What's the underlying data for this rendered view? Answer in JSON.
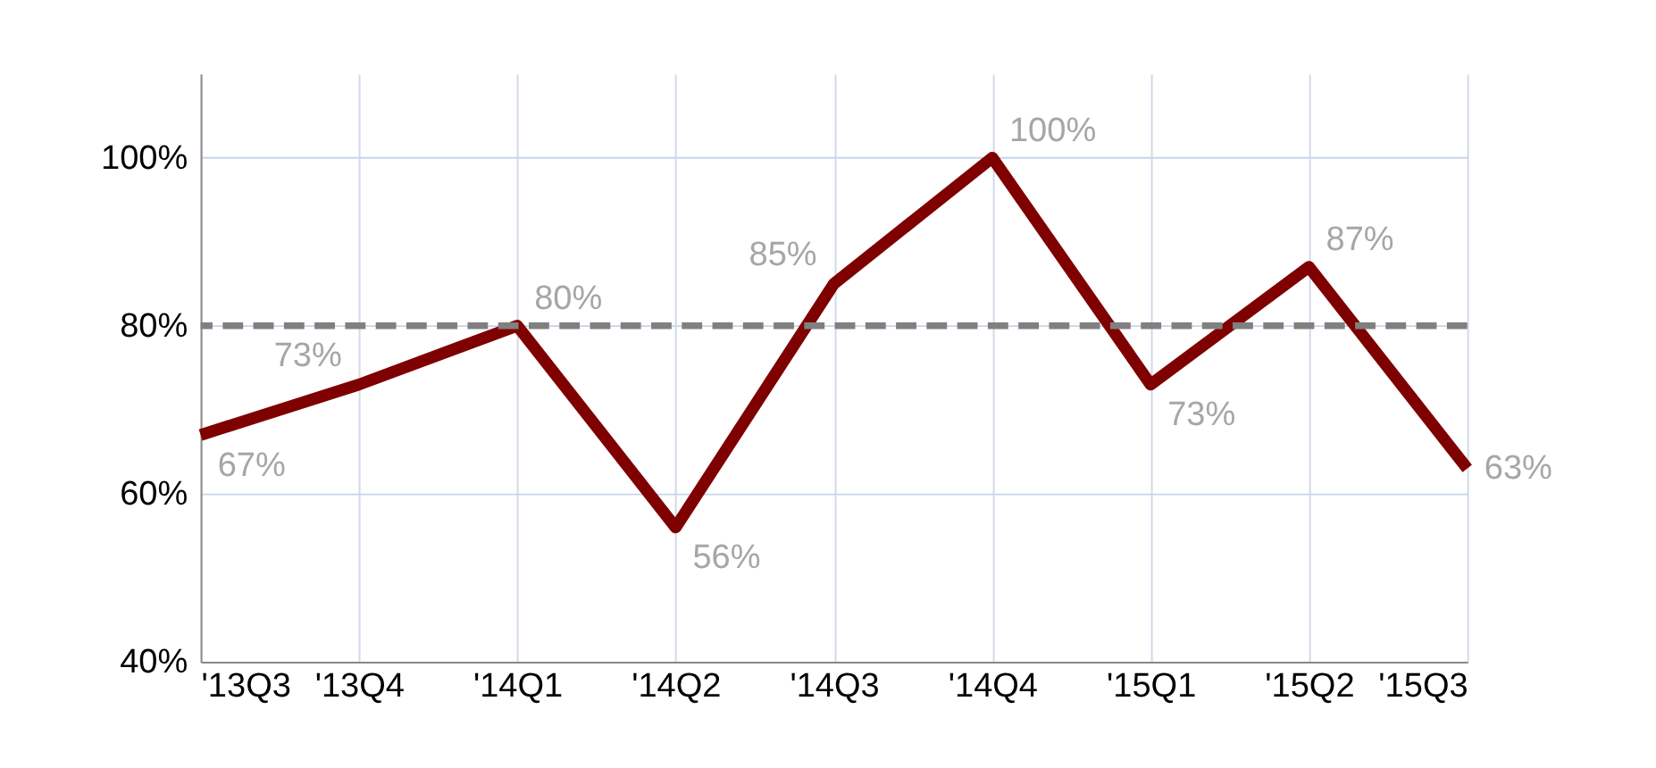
{
  "chart_data": {
    "type": "line",
    "categories": [
      "'13Q3",
      "'13Q4",
      "'14Q1",
      "'14Q2",
      "'14Q3",
      "'14Q4",
      "'15Q1",
      "'15Q2",
      "'15Q3"
    ],
    "series": [
      {
        "color": "#7f0000",
        "values": [
          67,
          73,
          80,
          56,
          85,
          100,
          73,
          87,
          63
        ],
        "value_labels": [
          "67%",
          "73%",
          "80%",
          "56%",
          "85%",
          "100%",
          "73%",
          "87%",
          "63%"
        ]
      }
    ],
    "ylim": [
      40,
      110
    ],
    "yticks": [
      {
        "value": 40,
        "label": "40%"
      },
      {
        "value": 60,
        "label": "60%"
      },
      {
        "value": 80,
        "label": "80%"
      },
      {
        "value": 100,
        "label": "100%"
      }
    ],
    "ref_lines": [
      {
        "axis": "y",
        "value": 80,
        "color": "#808080",
        "line_style": "dashed"
      }
    ],
    "grid": true,
    "marker": "none",
    "line_style": "solid"
  }
}
